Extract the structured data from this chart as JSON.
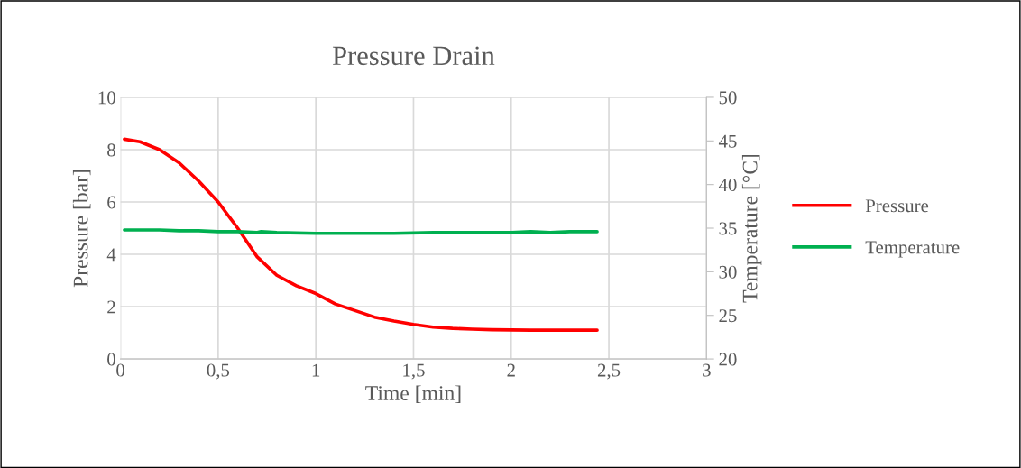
{
  "chart_data": {
    "type": "line",
    "title": "Pressure Drain",
    "xlabel": "Time [min]",
    "ylabel": "Pressure [bar]",
    "y2label": "Temperature [°C]",
    "xlim": [
      0,
      3
    ],
    "xticks": [
      0,
      {
        "value": 0.5,
        "label": "0,5"
      },
      1,
      {
        "value": 1.5,
        "label": "1,5"
      },
      2,
      {
        "value": 2.5,
        "label": "2,5"
      },
      3
    ],
    "ylim": [
      0,
      10
    ],
    "yticks": [
      0,
      2,
      4,
      6,
      8,
      10
    ],
    "y2lim": [
      20,
      50
    ],
    "y2ticks": [
      20,
      25,
      30,
      35,
      40,
      45,
      50
    ],
    "grid": true,
    "legend": "right",
    "marker": "none",
    "line_style": "solid",
    "series": [
      {
        "name": "Pressure",
        "color": "#ff0000",
        "x": [
          0.02,
          0.1,
          0.2,
          0.3,
          0.4,
          0.5,
          0.6,
          0.7,
          0.8,
          0.9,
          1.0,
          1.1,
          1.2,
          1.3,
          1.4,
          1.5,
          1.6,
          1.7,
          1.8,
          1.9,
          2.0,
          2.1,
          2.2,
          2.3,
          2.44
        ],
        "values": [
          8.4,
          8.3,
          8.0,
          7.5,
          6.8,
          6.0,
          5.0,
          3.9,
          3.2,
          2.8,
          2.5,
          2.1,
          1.85,
          1.6,
          1.45,
          1.32,
          1.22,
          1.17,
          1.14,
          1.12,
          1.11,
          1.1,
          1.1,
          1.1,
          1.1
        ]
      },
      {
        "name": "Temperature",
        "color": "#00b050",
        "axis": "y2",
        "x": [
          0.02,
          0.2,
          0.3,
          0.4,
          0.5,
          0.6,
          0.7,
          0.72,
          0.8,
          1.0,
          1.2,
          1.4,
          1.6,
          1.8,
          2.0,
          2.1,
          2.2,
          2.3,
          2.44
        ],
        "values": [
          34.8,
          34.8,
          34.7,
          34.7,
          34.6,
          34.6,
          34.5,
          34.6,
          34.5,
          34.4,
          34.4,
          34.4,
          34.5,
          34.5,
          34.5,
          34.6,
          34.5,
          34.6,
          34.6
        ]
      }
    ]
  }
}
